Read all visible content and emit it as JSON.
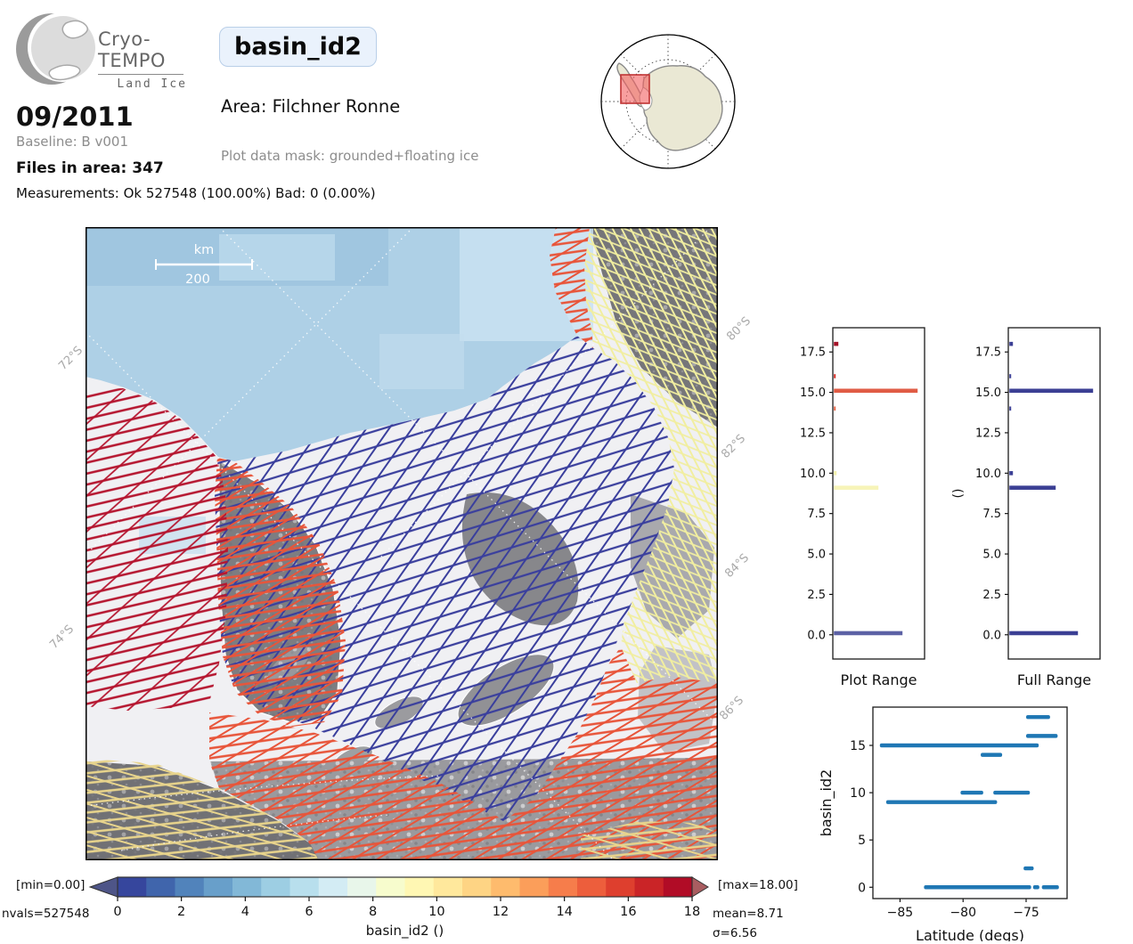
{
  "header": {
    "logo": {
      "brand": "Cryo-TEMPO",
      "subtitle": "Land Ice"
    },
    "variable_badge": "basin_id2",
    "area": "Area: Filchner Ronne",
    "plot_mask": "Plot data mask: grounded+floating ice",
    "date": "09/2011",
    "baseline": "Baseline: B v001",
    "files_in_area": "Files in area: 347",
    "measurements": "Measurements: Ok 527548 (100.00%) Bad: 0 (0.00%)"
  },
  "map": {
    "scalebar": {
      "unit": "km",
      "value": "200"
    },
    "lat_labels_left": [
      "72°S",
      "74°S"
    ],
    "lat_labels_right": [
      "80°S",
      "82°S",
      "84°S",
      "86°S"
    ],
    "track_colors": {
      "basin0": "#3a3f9d",
      "basin9": "#f1eea0",
      "basin15": "#e8553a",
      "basin18": "#b5152f"
    }
  },
  "colorbar": {
    "min_label": "[min=0.00]",
    "max_label": "[max=18.00]",
    "nvals": "nvals=527548",
    "mean": "mean=8.71",
    "sigma": "σ=6.56",
    "axis_label": "basin_id2 ()",
    "ticks": [
      "0",
      "2",
      "4",
      "6",
      "8",
      "10",
      "12",
      "14",
      "16",
      "18"
    ],
    "colors": [
      "#36469d",
      "#4065ac",
      "#5183bb",
      "#689fca",
      "#82b8d7",
      "#9dcee3",
      "#b8dfed",
      "#d3ecf4",
      "#e8f6ea",
      "#f7fccd",
      "#fff7b3",
      "#ffe89c",
      "#fed484",
      "#febb6d",
      "#fb9e5a",
      "#f67d4b",
      "#ed5e3c",
      "#de3f2e",
      "#ca2427",
      "#b10c26"
    ],
    "under_color": "#4e5588",
    "over_color": "#a95d60"
  },
  "chart_data": [
    {
      "type": "bar",
      "orientation": "horizontal",
      "title": "Plot Range",
      "ylim": [
        -1.5,
        19.0
      ],
      "yticks": [
        0.0,
        2.5,
        5.0,
        7.5,
        10.0,
        12.5,
        15.0,
        17.5
      ],
      "ytick_labels": [
        "0.0",
        "2.5",
        "5.0",
        "7.5",
        "10.0",
        "12.5",
        "15.0",
        "17.5"
      ],
      "bars": [
        {
          "y": 18.0,
          "length": 0.05,
          "color": "#a51429"
        },
        {
          "y": 16.0,
          "length": 0.013,
          "color": "#d73027"
        },
        {
          "y": 15.1,
          "length": 0.94,
          "color": "#e05c45"
        },
        {
          "y": 14.0,
          "length": 0.013,
          "color": "#e8684a"
        },
        {
          "y": 10.0,
          "length": 0.03,
          "color": "#f5f2ae"
        },
        {
          "y": 9.1,
          "length": 0.5,
          "color": "#f7f4b8"
        },
        {
          "y": 0.1,
          "length": 0.77,
          "color": "#5c61a5"
        }
      ]
    },
    {
      "type": "bar",
      "orientation": "horizontal",
      "title": "Full Range",
      "ylabel": "()",
      "ylim": [
        -1.5,
        19.0
      ],
      "yticks": [
        0.0,
        2.5,
        5.0,
        7.5,
        10.0,
        12.5,
        15.0,
        17.5
      ],
      "ytick_labels": [
        "0.0",
        "2.5",
        "5.0",
        "7.5",
        "10.0",
        "12.5",
        "15.0",
        "17.5"
      ],
      "bars": [
        {
          "y": 18.0,
          "length": 0.04,
          "color": "#3b3f94"
        },
        {
          "y": 16.0,
          "length": 0.012,
          "color": "#3b3f94"
        },
        {
          "y": 15.1,
          "length": 0.94,
          "color": "#3b3f94"
        },
        {
          "y": 14.0,
          "length": 0.015,
          "color": "#3b3f94"
        },
        {
          "y": 10.0,
          "length": 0.04,
          "color": "#3b3f94"
        },
        {
          "y": 9.1,
          "length": 0.52,
          "color": "#3b3f94"
        },
        {
          "y": 0.1,
          "length": 0.77,
          "color": "#3b3f94"
        }
      ]
    },
    {
      "type": "scatter",
      "xlabel": "Latitude (degs)",
      "ylabel": "basin_id2",
      "xlim": [
        -87.15,
        -71.75
      ],
      "ylim": [
        -1.2,
        19.05
      ],
      "xticks": [
        -85,
        -80,
        -75
      ],
      "xtick_labels": [
        "−85",
        "−80",
        "−75"
      ],
      "yticks": [
        0,
        5,
        10,
        15
      ],
      "ytick_labels": [
        "0",
        "5",
        "10",
        "15"
      ],
      "color": "#1f77b4",
      "segments": [
        {
          "y": 18,
          "x1": -75.0,
          "x2": -73.1
        },
        {
          "y": 16,
          "x1": -75.0,
          "x2": -72.5
        },
        {
          "y": 15,
          "x1": -86.6,
          "x2": -74.0
        },
        {
          "y": 14,
          "x1": -78.6,
          "x2": -76.9
        },
        {
          "y": 10,
          "x1": -80.2,
          "x2": -78.4
        },
        {
          "y": 10,
          "x1": -77.6,
          "x2": -74.7
        },
        {
          "y": 9,
          "x1": -86.1,
          "x2": -77.3
        },
        {
          "y": 2,
          "x1": -75.2,
          "x2": -74.4
        },
        {
          "y": 0,
          "x1": -83.1,
          "x2": -74.6
        },
        {
          "y": 0,
          "x1": -74.45,
          "x2": -73.95
        },
        {
          "y": 0,
          "x1": -73.75,
          "x2": -72.4
        }
      ]
    }
  ]
}
